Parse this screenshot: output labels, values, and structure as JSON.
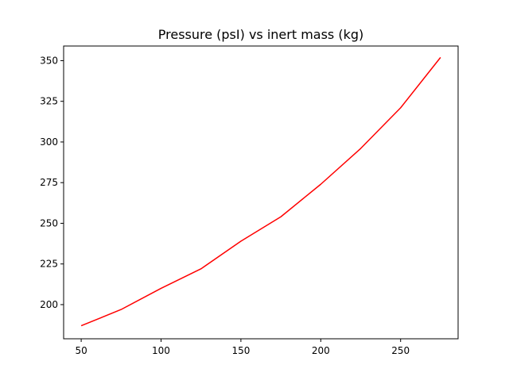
{
  "chart_data": {
    "type": "line",
    "title": "Pressure  (psI) vs inert mass (kg)",
    "xlabel": "",
    "ylabel": "",
    "xlim": [
      39,
      286
    ],
    "ylim": [
      179,
      359
    ],
    "x_ticks": [
      50,
      100,
      150,
      200,
      250
    ],
    "y_ticks": [
      200,
      225,
      250,
      275,
      300,
      325,
      350
    ],
    "grid": false,
    "series": [
      {
        "color": "#ff0000",
        "x": [
          50,
          75,
          100,
          125,
          150,
          175,
          200,
          225,
          250,
          275
        ],
        "y": [
          187,
          197,
          210,
          222,
          239,
          254,
          274,
          296,
          321,
          352
        ]
      }
    ]
  }
}
